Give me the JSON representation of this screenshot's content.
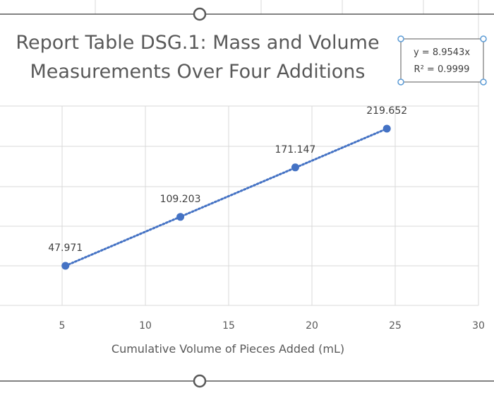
{
  "chart_data": {
    "type": "scatter",
    "title_lines": [
      "Report Table DSG.1: Mass and Volume",
      "Measurements Over Four Additions"
    ],
    "xlabel": "Cumulative Volume of Pieces Added (mL)",
    "ylabel": "",
    "xlim": [
      0,
      30
    ],
    "xticks": [
      "5",
      "10",
      "15",
      "20",
      "25",
      "30"
    ],
    "grid": true,
    "series": [
      {
        "x": [
          5.2,
          12.1,
          19.0,
          24.5
        ],
        "y": [
          47.971,
          109.203,
          171.147,
          219.652
        ],
        "labels": [
          "47.971",
          "109.203",
          "171.147",
          "219.652"
        ],
        "color": "#4472C4"
      }
    ],
    "trendline": {
      "type": "linear",
      "style": "dotted",
      "equation": "y = 8.9543x",
      "r_squared": "R² = 0.9999"
    }
  }
}
